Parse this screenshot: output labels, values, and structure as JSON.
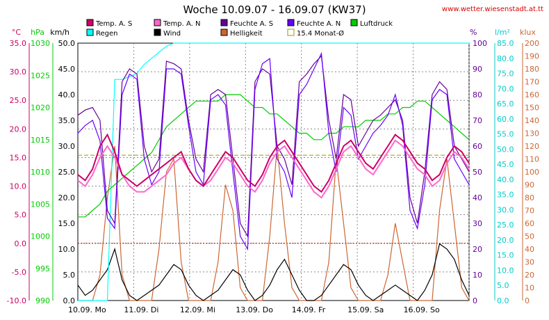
{
  "title": "Woche 10.09.07 - 16.09.07 (KW37)",
  "url": "www.wetter.wiesenstadt.at.tt",
  "legend": [
    {
      "label": "Temp. A. S",
      "color": "#cc0066"
    },
    {
      "label": "Temp. A. N",
      "color": "#ff66cc"
    },
    {
      "label": "Feuchte A. S",
      "color": "#660099"
    },
    {
      "label": "Feuchte A. N",
      "color": "#6600ff"
    },
    {
      "label": "Luftdruck",
      "color": "#00cc00"
    },
    {
      "label": "Regen",
      "color": "#00ffff"
    },
    {
      "label": "Wind",
      "color": "#000000"
    },
    {
      "label": "Helligkeit",
      "color": "#cc6633"
    },
    {
      "label": "15.4 Monat-Ø",
      "color": "#999900"
    }
  ],
  "chart_data": {
    "type": "line",
    "x_labels": [
      "10.09. Mo",
      "11.09. Di",
      "12.09. Mi",
      "13.09. Do",
      "14.09. Fr",
      "15.09. Sa",
      "16.09. So"
    ],
    "axes": {
      "temp_c": {
        "unit": "°C",
        "color": "#cc0066",
        "ticks": [
          "35.0",
          "30.0",
          "25.0",
          "20.0",
          "15.0",
          "10.0",
          "5.0",
          "0.0",
          "-5.0",
          "-10.0"
        ],
        "range": [
          -10,
          35
        ]
      },
      "pressure": {
        "unit": "hPa",
        "color": "#00cc00",
        "ticks": [
          "1030",
          "1025",
          "1020",
          "1015",
          "1010",
          "1005",
          "1000",
          "995",
          "990"
        ],
        "range": [
          990,
          1030
        ]
      },
      "wind": {
        "unit": "km/h",
        "color": "#000000",
        "ticks": [
          "50.0",
          "45.0",
          "40.0",
          "35.0",
          "30.0",
          "25.0",
          "20.0",
          "15.0",
          "10.0",
          "5.0",
          "0.0"
        ],
        "range": [
          0,
          50
        ]
      },
      "humidity": {
        "unit": "%",
        "color": "#660099",
        "ticks": [
          "100",
          "90",
          "80",
          "70",
          "60",
          "50",
          "40",
          "30",
          "20",
          "10",
          "0"
        ],
        "range": [
          0,
          100
        ]
      },
      "rain": {
        "unit": "l/m²",
        "color": "#00cccc",
        "ticks": [
          "85.0",
          "80.0",
          "75.0",
          "70.0",
          "65.0",
          "60.0",
          "55.0",
          "50.0",
          "45.0",
          "40.0",
          "35.0",
          "30.0",
          "25.0",
          "20.0",
          "15.0",
          "10.0",
          "5.0",
          "0.0"
        ],
        "range": [
          0,
          85
        ]
      },
      "lux": {
        "unit": "klux",
        "color": "#cc6633",
        "ticks": [
          "200",
          "190",
          "180",
          "170",
          "160",
          "150",
          "140",
          "130",
          "120",
          "110",
          "100",
          "90",
          "80",
          "70",
          "60",
          "50",
          "40",
          "30",
          "20",
          "10",
          "0"
        ],
        "range": [
          0,
          200
        ]
      }
    },
    "monthly_avg_temp": 15.4,
    "series": [
      {
        "name": "Temp. A. S",
        "axis": "temp_c",
        "color": "#cc0066",
        "values": [
          12,
          11,
          13,
          17,
          19,
          16,
          12,
          11,
          10,
          11,
          12,
          13,
          14,
          15,
          16,
          13,
          11,
          10,
          12,
          14,
          16,
          15,
          13,
          11,
          10,
          12,
          15,
          17,
          18,
          16,
          14,
          12,
          10,
          9,
          11,
          14,
          17,
          18,
          16,
          14,
          13,
          15,
          17,
          19,
          18,
          16,
          14,
          13,
          11,
          12,
          15,
          17,
          16,
          14
        ]
      },
      {
        "name": "Temp. A. N",
        "axis": "temp_c",
        "color": "#ff66cc",
        "values": [
          11,
          10,
          12,
          15,
          17,
          15,
          12,
          10,
          9,
          9,
          10,
          11,
          12,
          14,
          15,
          13,
          11,
          10,
          11,
          13,
          15,
          14,
          12,
          10,
          9,
          11,
          14,
          16,
          17,
          15,
          13,
          11,
          9,
          8,
          10,
          13,
          16,
          17,
          15,
          13,
          12,
          14,
          16,
          18,
          17,
          15,
          13,
          12,
          10,
          11,
          14,
          16,
          15,
          13
        ]
      },
      {
        "name": "Feuchte A. S",
        "axis": "humidity",
        "color": "#660099",
        "values": [
          72,
          74,
          75,
          70,
          35,
          30,
          85,
          90,
          88,
          60,
          50,
          55,
          93,
          92,
          90,
          70,
          55,
          50,
          80,
          82,
          80,
          55,
          30,
          25,
          85,
          90,
          88,
          60,
          55,
          45,
          85,
          88,
          92,
          95,
          70,
          55,
          80,
          78,
          60,
          65,
          70,
          72,
          75,
          78,
          70,
          40,
          30,
          50,
          80,
          85,
          82,
          60,
          55,
          50
        ]
      },
      {
        "name": "Feuchte A. N",
        "axis": "humidity",
        "color": "#6600ff",
        "values": [
          65,
          68,
          70,
          62,
          32,
          28,
          80,
          88,
          86,
          55,
          45,
          50,
          90,
          90,
          88,
          68,
          50,
          45,
          78,
          80,
          76,
          50,
          25,
          20,
          82,
          92,
          94,
          55,
          50,
          40,
          80,
          84,
          90,
          96,
          65,
          50,
          75,
          72,
          55,
          60,
          65,
          68,
          72,
          80,
          68,
          35,
          28,
          45,
          78,
          82,
          80,
          55,
          50,
          45
        ]
      },
      {
        "name": "Luftdruck",
        "axis": "pressure",
        "color": "#00cc00",
        "values": [
          1003,
          1003,
          1004,
          1005,
          1007,
          1008,
          1009,
          1010,
          1011,
          1012,
          1013,
          1015,
          1017,
          1018,
          1019,
          1020,
          1021,
          1021,
          1021,
          1021,
          1022,
          1022,
          1022,
          1021,
          1020,
          1020,
          1019,
          1019,
          1018,
          1017,
          1016,
          1016,
          1015,
          1015,
          1016,
          1016,
          1017,
          1017,
          1017,
          1018,
          1018,
          1018,
          1019,
          1019,
          1020,
          1020,
          1021,
          1021,
          1020,
          1019,
          1018,
          1017,
          1016,
          1015
        ]
      },
      {
        "name": "Regen",
        "axis": "rain",
        "color": "#00ffff",
        "values": [
          0,
          0,
          0,
          0,
          0,
          73,
          73,
          74,
          75,
          78,
          80,
          82,
          84,
          85,
          85,
          85,
          85,
          85,
          85,
          85,
          85,
          85,
          85,
          85,
          85,
          85,
          85,
          85,
          85,
          85,
          85,
          85,
          85,
          85,
          85,
          85,
          85,
          85,
          85,
          85,
          85,
          85,
          85,
          85,
          85,
          85,
          85,
          85,
          85,
          85,
          85,
          85,
          85,
          85
        ]
      },
      {
        "name": "Wind",
        "axis": "wind",
        "color": "#000000",
        "values": [
          3,
          1,
          2,
          4,
          6,
          10,
          4,
          1,
          0,
          1,
          2,
          3,
          5,
          7,
          6,
          3,
          1,
          0,
          1,
          2,
          4,
          6,
          5,
          2,
          0,
          1,
          3,
          6,
          8,
          5,
          2,
          0,
          0,
          1,
          3,
          5,
          7,
          6,
          3,
          1,
          0,
          1,
          2,
          3,
          2,
          1,
          0,
          2,
          5,
          11,
          10,
          8,
          4,
          1
        ]
      },
      {
        "name": "Helligkeit",
        "axis": "lux",
        "color": "#cc6633",
        "values": [
          0,
          0,
          0,
          20,
          80,
          120,
          20,
          0,
          0,
          0,
          0,
          40,
          100,
          110,
          30,
          0,
          0,
          0,
          0,
          30,
          90,
          70,
          10,
          0,
          0,
          0,
          50,
          120,
          60,
          10,
          0,
          0,
          0,
          0,
          30,
          110,
          60,
          10,
          0,
          0,
          0,
          0,
          20,
          60,
          30,
          0,
          0,
          0,
          0,
          70,
          110,
          60,
          10,
          0
        ]
      }
    ]
  }
}
